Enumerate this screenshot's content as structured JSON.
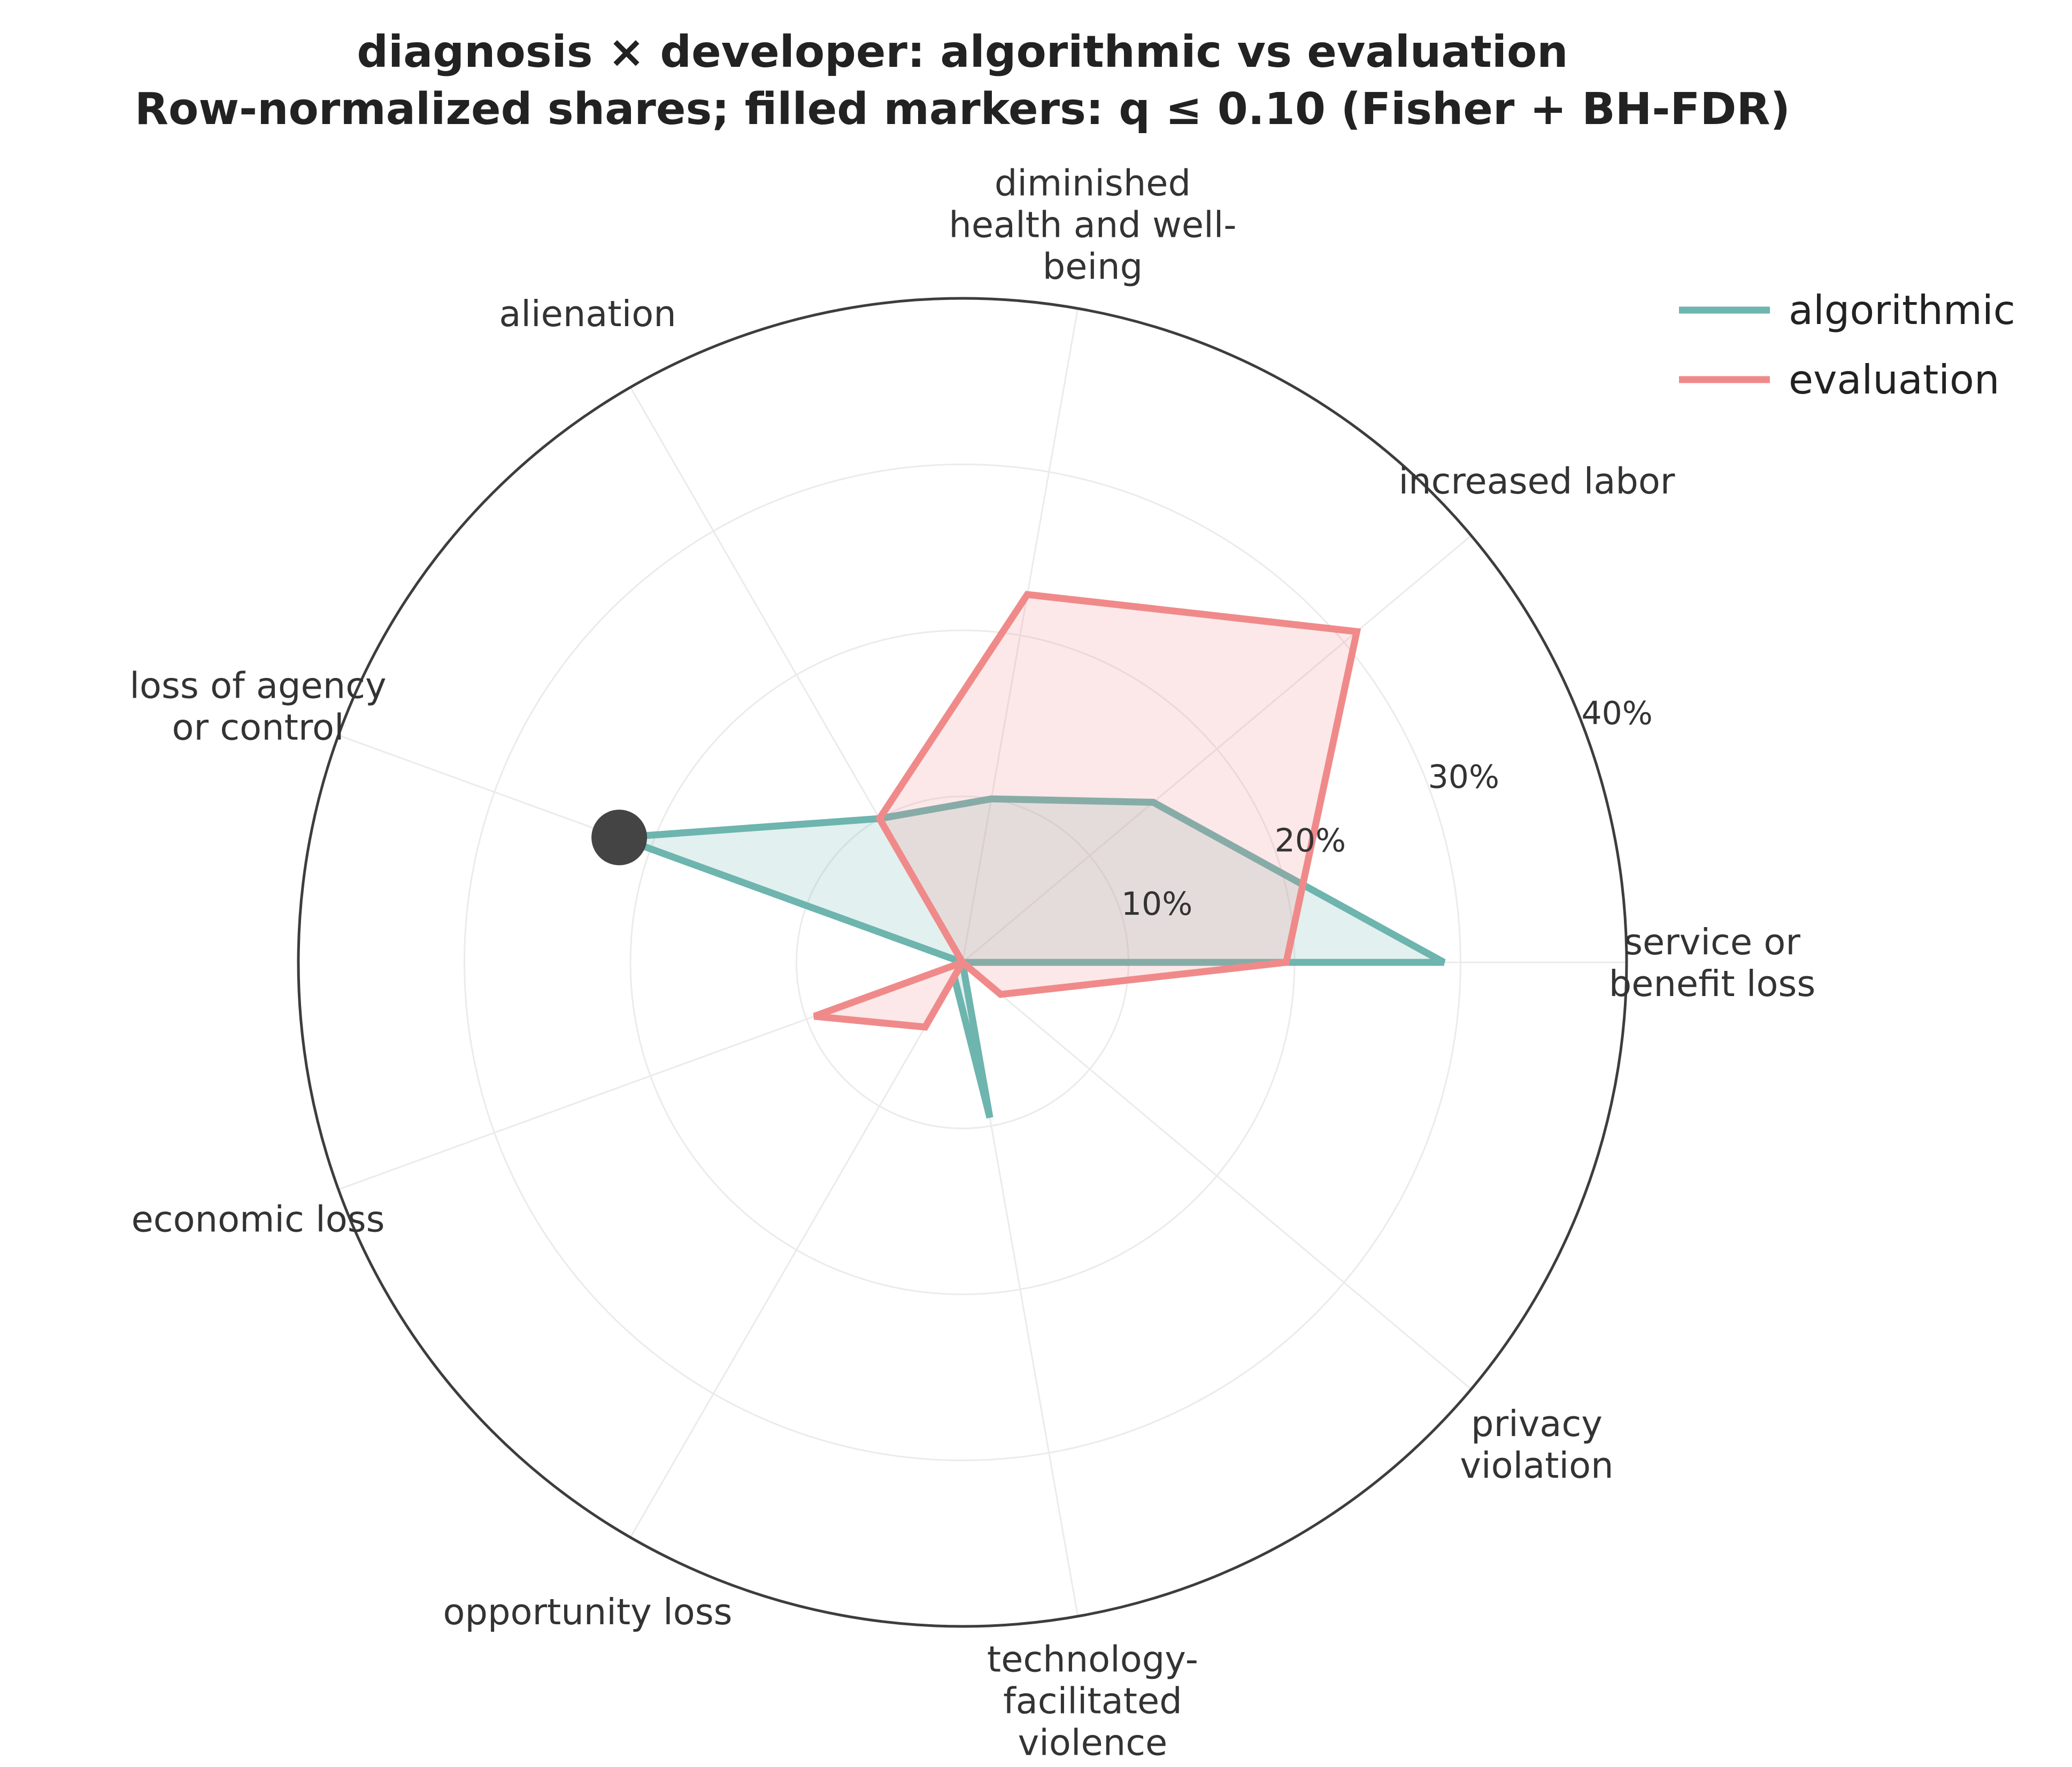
{
  "chart_data": {
    "type": "radar",
    "title_lines": [
      "diagnosis × developer: algorithmic vs evaluation",
      "Row-normalized shares; filled markers: q ≤ 0.10 (Fisher + BH-FDR)"
    ],
    "categories": [
      [
        "service or",
        "benefit loss"
      ],
      [
        "increased labor"
      ],
      [
        "diminished",
        "health and well-",
        "being"
      ],
      [
        "alienation"
      ],
      [
        "loss of agency",
        "or control"
      ],
      [
        "economic loss"
      ],
      [
        "opportunity loss"
      ],
      [
        "technology-",
        "facilitated",
        "violence"
      ],
      [
        "privacy",
        "violation"
      ]
    ],
    "radial_ticks": [
      "10%",
      "20%",
      "30%",
      "40%"
    ],
    "radial_tick_values": [
      10,
      20,
      30,
      40
    ],
    "rmax": 40,
    "series": [
      {
        "name": "algorithmic",
        "color": "#6db5ae",
        "values": [
          29,
          15,
          10,
          10,
          22,
          0,
          1,
          9.5,
          0
        ]
      },
      {
        "name": "evaluation",
        "color": "#f08a8a",
        "values": [
          19.5,
          31,
          22.5,
          10,
          0,
          9.5,
          4.5,
          0,
          3
        ]
      }
    ],
    "significant_markers": [
      {
        "series": "algorithmic",
        "category_index": 4,
        "color": "#444444"
      }
    ],
    "legend_position": "top-right",
    "grid": true
  }
}
